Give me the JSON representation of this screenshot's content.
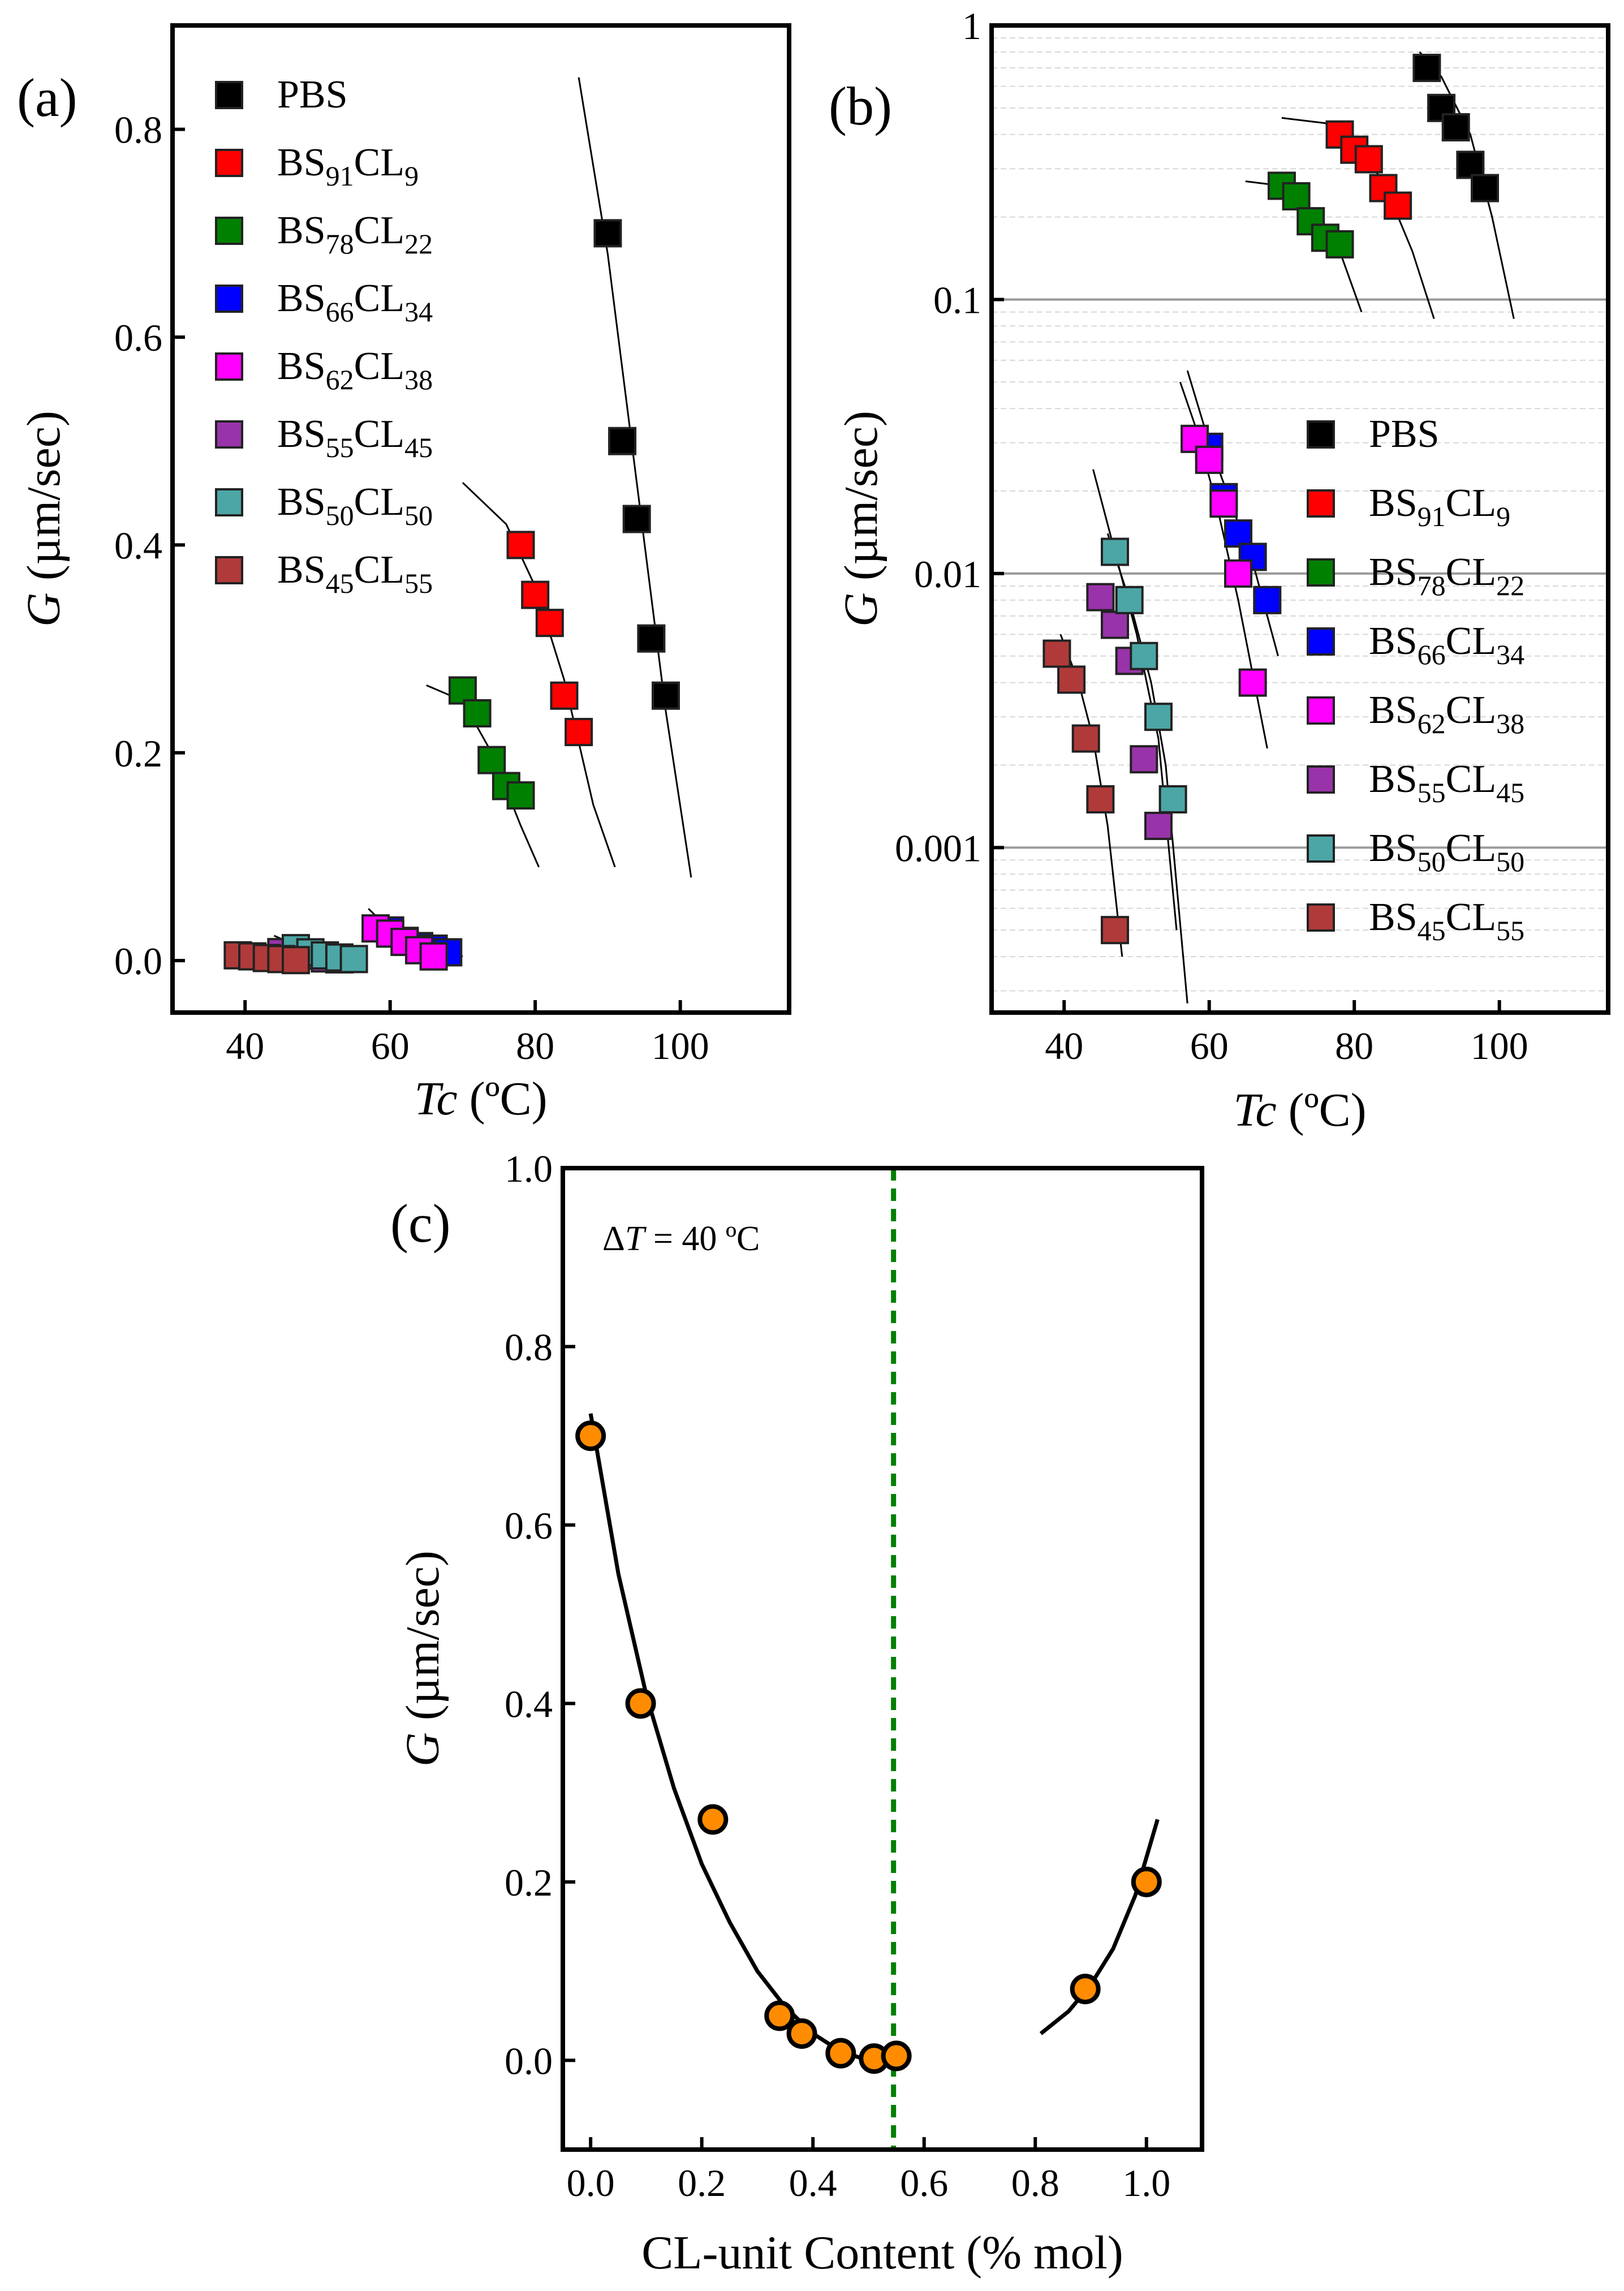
{
  "colors": {
    "PBS": "#000000",
    "BS91CL9": "#ff0000",
    "BS78CL22": "#008000",
    "BS66CL34": "#0000ff",
    "BS62CL38": "#ff00ff",
    "BS55CL45": "#9933aa",
    "BS50CL50": "#4ca6a6",
    "BS45CL55": "#b03a3a",
    "orange": "#ff8c00",
    "dashed": "#008000",
    "grid": "#d8d8d8"
  },
  "chart_data": [
    {
      "id": "a",
      "type": "scatter",
      "panel_label": "(a)",
      "xlabel": "Tc",
      "xunit": "(ºC)",
      "ylabel": "G",
      "yunit": "(µm/sec)",
      "xlim": [
        30,
        115
      ],
      "ylim": [
        -0.05,
        0.9
      ],
      "xticks": [
        40,
        60,
        80,
        100
      ],
      "xtick_labels": [
        "40",
        "60",
        "80",
        "100"
      ],
      "yticks": [
        0.0,
        0.2,
        0.4,
        0.6,
        0.8
      ],
      "ytick_labels": [
        "0.0",
        "0.2",
        "0.4",
        "0.6",
        "0.8"
      ],
      "legend": "top-left",
      "series": [
        {
          "key": "PBS",
          "base": "PBS",
          "sub1": "",
          "mid": "",
          "sub2": "",
          "x": [
            90,
            92,
            94,
            96,
            98
          ],
          "y": [
            0.7,
            0.5,
            0.425,
            0.31,
            0.255
          ],
          "fit_x": [
            86,
            90,
            94,
            98,
            101.5
          ],
          "fit_y": [
            0.85,
            0.68,
            0.46,
            0.24,
            0.08
          ]
        },
        {
          "key": "BS91CL9",
          "base": "BS",
          "sub1": "91",
          "mid": "CL",
          "sub2": "9",
          "x": [
            78,
            80,
            82,
            84,
            86
          ],
          "y": [
            0.4,
            0.352,
            0.325,
            0.255,
            0.22
          ],
          "fit_x": [
            70,
            76,
            80,
            84,
            88,
            91
          ],
          "fit_y": [
            0.46,
            0.42,
            0.36,
            0.27,
            0.15,
            0.09
          ]
        },
        {
          "key": "BS78CL22",
          "base": "BS",
          "sub1": "78",
          "mid": "CL",
          "sub2": "22",
          "x": [
            70,
            72,
            74,
            76,
            78
          ],
          "y": [
            0.26,
            0.238,
            0.193,
            0.168,
            0.159
          ],
          "fit_x": [
            65,
            70,
            74,
            78,
            80.5
          ],
          "fit_y": [
            0.265,
            0.25,
            0.2,
            0.13,
            0.09
          ]
        },
        {
          "key": "BS66CL34",
          "base": "BS",
          "sub1": "66",
          "mid": "CL",
          "sub2": "34",
          "x": [
            60,
            62,
            64,
            66,
            68
          ],
          "y": [
            0.029,
            0.019,
            0.014,
            0.0115,
            0.008
          ],
          "fit_x": [
            58,
            62,
            66,
            70
          ],
          "fit_y": [
            0.03,
            0.02,
            0.012,
            0.004
          ]
        },
        {
          "key": "BS62CL38",
          "base": "BS",
          "sub1": "62",
          "mid": "CL",
          "sub2": "38",
          "x": [
            58,
            60,
            62,
            64,
            66
          ],
          "y": [
            0.031,
            0.026,
            0.018,
            0.01,
            0.004
          ],
          "fit_x": [
            57,
            60,
            64,
            68,
            70
          ],
          "fit_y": [
            0.05,
            0.03,
            0.015,
            0.008,
            0.004
          ]
        },
        {
          "key": "BS55CL45",
          "base": "BS",
          "sub1": "55",
          "mid": "CL",
          "sub2": "45",
          "x": [
            45,
            47,
            49,
            51,
            53
          ],
          "y": [
            0.0082,
            0.0065,
            0.0048,
            0.0021,
            0.0012
          ],
          "fit_x": [
            44,
            48,
            52,
            56
          ],
          "fit_y": [
            0.014,
            0.008,
            0.003,
            0.0005
          ]
        },
        {
          "key": "BS50CL50",
          "base": "BS",
          "sub1": "50",
          "mid": "CL",
          "sub2": "50",
          "x": [
            47,
            49,
            51,
            53,
            55
          ],
          "y": [
            0.012,
            0.008,
            0.005,
            0.003,
            0.0015
          ],
          "fit_x": [
            44,
            48,
            52,
            56
          ],
          "fit_y": [
            0.024,
            0.012,
            0.005,
            0.001
          ]
        },
        {
          "key": "BS45CL55",
          "base": "BS",
          "sub1": "45",
          "mid": "CL",
          "sub2": "55",
          "x": [
            39,
            41,
            43,
            45,
            47
          ],
          "y": [
            0.0051,
            0.0041,
            0.0025,
            0.0015,
            0.0005
          ],
          "fit_x": [
            39,
            42,
            45,
            48
          ],
          "fit_y": [
            0.006,
            0.004,
            0.002,
            0.0004
          ]
        }
      ]
    },
    {
      "id": "b",
      "type": "scatter",
      "panel_label": "(b)",
      "xlabel": "Tc",
      "xunit": "(ºC)",
      "ylabel": "G",
      "yunit": "(µm/sec)",
      "yscale": "log",
      "xlim": [
        30,
        115
      ],
      "ylim": [
        0.00025,
        1.0
      ],
      "xticks": [
        40,
        60,
        80,
        100
      ],
      "xtick_labels": [
        "40",
        "60",
        "80",
        "100"
      ],
      "yticks": [
        0.001,
        0.01,
        0.1,
        1
      ],
      "ytick_labels": [
        "0.001",
        "0.01",
        "0.1",
        "1"
      ],
      "legend": "center-right",
      "fits": [
        {
          "x": [
            89,
            92,
            96,
            99,
            102
          ],
          "y": [
            0.8,
            0.65,
            0.4,
            0.2,
            0.085
          ]
        },
        {
          "x": [
            70,
            76,
            80,
            84,
            88,
            91
          ],
          "y": [
            0.46,
            0.44,
            0.37,
            0.27,
            0.15,
            0.085
          ]
        },
        {
          "x": [
            65,
            70,
            74,
            78,
            81
          ],
          "y": [
            0.27,
            0.26,
            0.21,
            0.15,
            0.09
          ]
        },
        {
          "x": [
            57,
            60,
            63,
            66,
            69.5
          ],
          "y": [
            0.055,
            0.03,
            0.018,
            0.011,
            0.005
          ]
        },
        {
          "x": [
            56,
            58,
            61,
            64,
            68
          ],
          "y": [
            0.05,
            0.035,
            0.018,
            0.008,
            0.0023
          ]
        },
        {
          "x": [
            44,
            47,
            50,
            53,
            55.5
          ],
          "y": [
            0.024,
            0.012,
            0.006,
            0.0025,
            0.0005
          ]
        },
        {
          "x": [
            46,
            49,
            52,
            54,
            57
          ],
          "y": [
            0.014,
            0.008,
            0.004,
            0.002,
            0.00027
          ]
        },
        {
          "x": [
            39.5,
            42,
            44,
            46,
            48
          ],
          "y": [
            0.006,
            0.004,
            0.0025,
            0.0012,
            0.0004
          ]
        }
      ]
    },
    {
      "id": "c",
      "type": "scatter",
      "panel_label": "(c)",
      "annotation_delta": "Δ",
      "annotation_T": "T",
      "annotation_rest": " = 40 ºC",
      "xlabel": "CL-unit Content (% mol)",
      "ylabel": "G",
      "yunit": "(µm/sec)",
      "xlim": [
        -0.05,
        1.1
      ],
      "ylim": [
        -0.1,
        1.0
      ],
      "xticks": [
        0.0,
        0.2,
        0.4,
        0.6,
        0.8,
        1.0
      ],
      "xtick_labels": [
        "0.0",
        "0.2",
        "0.4",
        "0.6",
        "0.8",
        "1.0"
      ],
      "yticks": [
        0.0,
        0.2,
        0.4,
        0.6,
        0.8,
        1.0
      ],
      "ytick_labels": [
        "0.0",
        "0.2",
        "0.4",
        "0.6",
        "0.8",
        "1.0"
      ],
      "vline_x": 0.545,
      "x": [
        0.0,
        0.09,
        0.22,
        0.34,
        0.38,
        0.45,
        0.51,
        0.55,
        0.89,
        1.0
      ],
      "y": [
        0.7,
        0.4,
        0.27,
        0.05,
        0.03,
        0.008,
        0.002,
        0.005,
        0.08,
        0.2
      ],
      "fit1_x": [
        0.0,
        0.05,
        0.1,
        0.15,
        0.2,
        0.25,
        0.3,
        0.35,
        0.4,
        0.45,
        0.5,
        0.54
      ],
      "fit1_y": [
        0.725,
        0.545,
        0.41,
        0.305,
        0.22,
        0.155,
        0.1,
        0.06,
        0.03,
        0.01,
        0.0,
        0.0
      ],
      "fit2_x": [
        0.81,
        0.86,
        0.9,
        0.94,
        0.98,
        1.02
      ],
      "fit2_y": [
        0.03,
        0.055,
        0.085,
        0.125,
        0.185,
        0.27
      ]
    }
  ]
}
